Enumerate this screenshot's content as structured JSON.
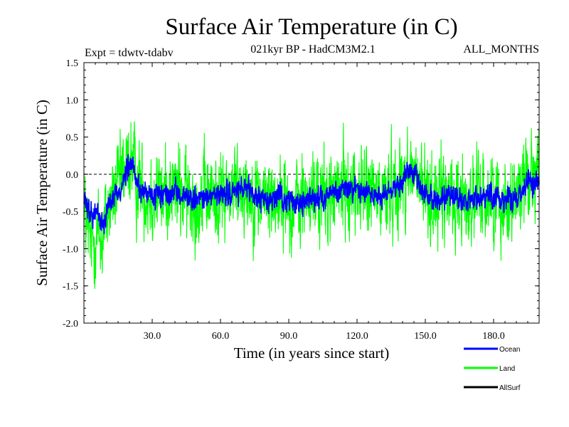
{
  "chart_data": {
    "type": "line",
    "title": "Surface Air Temperature (in C)",
    "subtitle": "021kyr BP - HadCM3M2.1",
    "experiment": "Expt = tdwtv-tdabv",
    "period": "ALL_MONTHS",
    "xlabel": "Time (in years since start)",
    "ylabel": "Surface Air Temperature (in C)",
    "xlim": [
      0,
      200
    ],
    "ylim": [
      -2.0,
      1.5
    ],
    "xticks": [
      30,
      60,
      90,
      120,
      150,
      180
    ],
    "xtick_labels": [
      "30.0",
      "60.0",
      "90.0",
      "120.0",
      "150.0",
      "180.0"
    ],
    "yticks": [
      -2.0,
      -1.5,
      -1.0,
      -0.5,
      0.0,
      0.5,
      1.0,
      1.5
    ],
    "ytick_labels": [
      "-2.0",
      "-1.5",
      "-1.0",
      "-0.5",
      "0.0",
      "0.5",
      "1.0",
      "1.5"
    ],
    "reference_line": 0.0,
    "samples_per_year": 12,
    "series": [
      {
        "name": "Ocean",
        "color": "#0000ff",
        "noise_amplitude": 0.12,
        "anchors": [
          [
            0,
            -0.35
          ],
          [
            3,
            -0.55
          ],
          [
            6,
            -0.5
          ],
          [
            8,
            -0.7
          ],
          [
            10,
            -0.45
          ],
          [
            13,
            -0.3
          ],
          [
            16,
            -0.2
          ],
          [
            19,
            0.05
          ],
          [
            21,
            0.15
          ],
          [
            23,
            -0.1
          ],
          [
            26,
            -0.25
          ],
          [
            30,
            -0.3
          ],
          [
            35,
            -0.3
          ],
          [
            40,
            -0.25
          ],
          [
            45,
            -0.3
          ],
          [
            50,
            -0.35
          ],
          [
            55,
            -0.3
          ],
          [
            60,
            -0.3
          ],
          [
            65,
            -0.25
          ],
          [
            70,
            -0.2
          ],
          [
            75,
            -0.3
          ],
          [
            80,
            -0.35
          ],
          [
            85,
            -0.3
          ],
          [
            90,
            -0.35
          ],
          [
            95,
            -0.4
          ],
          [
            100,
            -0.3
          ],
          [
            105,
            -0.3
          ],
          [
            110,
            -0.25
          ],
          [
            115,
            -0.2
          ],
          [
            120,
            -0.2
          ],
          [
            125,
            -0.25
          ],
          [
            130,
            -0.3
          ],
          [
            135,
            -0.2
          ],
          [
            140,
            -0.1
          ],
          [
            142,
            0.05
          ],
          [
            145,
            0.0
          ],
          [
            148,
            -0.2
          ],
          [
            152,
            -0.3
          ],
          [
            155,
            -0.35
          ],
          [
            160,
            -0.3
          ],
          [
            165,
            -0.35
          ],
          [
            170,
            -0.35
          ],
          [
            175,
            -0.3
          ],
          [
            180,
            -0.3
          ],
          [
            185,
            -0.35
          ],
          [
            190,
            -0.3
          ],
          [
            195,
            -0.1
          ],
          [
            200,
            -0.1
          ]
        ]
      },
      {
        "name": "Land",
        "color": "#00ff00",
        "noise_amplitude": 0.45,
        "anchors": [
          [
            0,
            -0.5
          ],
          [
            3,
            -0.9
          ],
          [
            6,
            -0.8
          ],
          [
            8,
            -0.9
          ],
          [
            10,
            -0.5
          ],
          [
            13,
            -0.3
          ],
          [
            16,
            -0.1
          ],
          [
            19,
            0.1
          ],
          [
            21,
            0.2
          ],
          [
            23,
            -0.1
          ],
          [
            26,
            -0.2
          ],
          [
            30,
            -0.3
          ],
          [
            35,
            -0.25
          ],
          [
            40,
            -0.2
          ],
          [
            45,
            -0.3
          ],
          [
            50,
            -0.35
          ],
          [
            55,
            -0.3
          ],
          [
            60,
            -0.3
          ],
          [
            65,
            -0.2
          ],
          [
            70,
            -0.15
          ],
          [
            75,
            -0.3
          ],
          [
            80,
            -0.35
          ],
          [
            85,
            -0.3
          ],
          [
            90,
            -0.4
          ],
          [
            95,
            -0.4
          ],
          [
            100,
            -0.3
          ],
          [
            105,
            -0.35
          ],
          [
            110,
            -0.25
          ],
          [
            115,
            -0.2
          ],
          [
            120,
            -0.2
          ],
          [
            125,
            -0.25
          ],
          [
            130,
            -0.3
          ],
          [
            135,
            -0.2
          ],
          [
            140,
            -0.1
          ],
          [
            142,
            0.05
          ],
          [
            145,
            0.0
          ],
          [
            148,
            -0.2
          ],
          [
            152,
            -0.3
          ],
          [
            155,
            -0.35
          ],
          [
            160,
            -0.3
          ],
          [
            165,
            -0.35
          ],
          [
            170,
            -0.35
          ],
          [
            175,
            -0.3
          ],
          [
            180,
            -0.3
          ],
          [
            185,
            -0.35
          ],
          [
            190,
            -0.3
          ],
          [
            195,
            0.05
          ],
          [
            200,
            0.1
          ]
        ]
      },
      {
        "name": "AllSurf",
        "color": "#000000",
        "noise_amplitude": 0,
        "anchors": []
      }
    ]
  }
}
